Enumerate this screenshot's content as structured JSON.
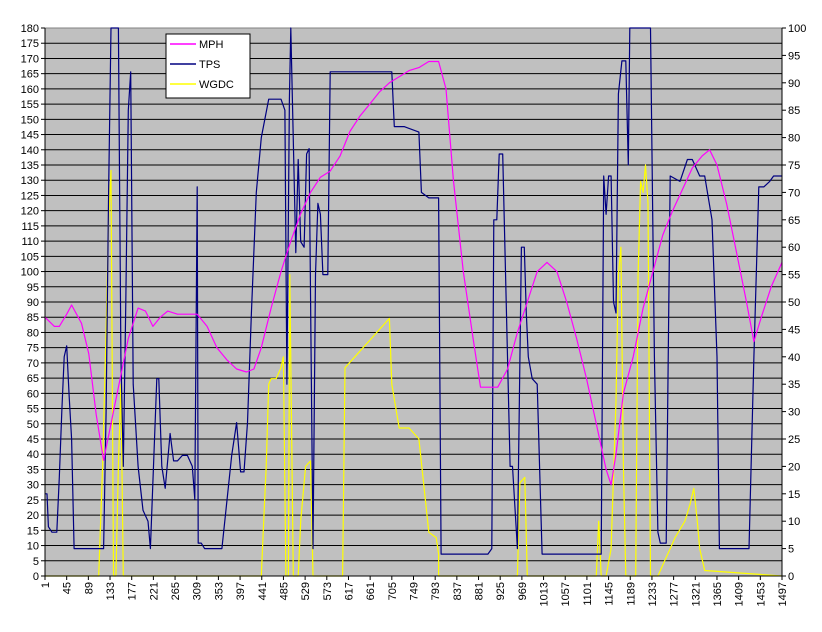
{
  "chart_data": {
    "type": "line",
    "title": "",
    "xlabel": "",
    "ylabel": "",
    "y2label": "",
    "xlim": [
      1,
      1497
    ],
    "ylim": [
      0,
      180
    ],
    "y2lim": [
      0,
      100
    ],
    "grid": "horizontal",
    "plot_background": "#c0c0c0",
    "legend_position": "top-left",
    "x_ticks": [
      "1",
      "45",
      "89",
      "133",
      "177",
      "221",
      "265",
      "309",
      "353",
      "397",
      "441",
      "485",
      "529",
      "573",
      "617",
      "661",
      "705",
      "749",
      "793",
      "837",
      "881",
      "925",
      "969",
      "1013",
      "1057",
      "1101",
      "1145",
      "1189",
      "1233",
      "1277",
      "1321",
      "1365",
      "1409",
      "1453",
      "1497"
    ],
    "y_ticks": [
      "0",
      "5",
      "10",
      "15",
      "20",
      "25",
      "30",
      "35",
      "40",
      "45",
      "50",
      "55",
      "60",
      "65",
      "70",
      "75",
      "80",
      "85",
      "90",
      "95",
      "100",
      "105",
      "110",
      "115",
      "120",
      "125",
      "130",
      "135",
      "140",
      "145",
      "150",
      "155",
      "160",
      "165",
      "170",
      "175",
      "180"
    ],
    "y2_ticks": [
      "0",
      "5",
      "10",
      "15",
      "20",
      "25",
      "30",
      "35",
      "40",
      "45",
      "50",
      "55",
      "60",
      "65",
      "70",
      "75",
      "80",
      "85",
      "90",
      "95",
      "100"
    ],
    "series": [
      {
        "name": "MPH",
        "axis": "left",
        "color": "#ff00ff",
        "points": [
          [
            1,
            85
          ],
          [
            20,
            82
          ],
          [
            30,
            82
          ],
          [
            45,
            86
          ],
          [
            55,
            89
          ],
          [
            75,
            83
          ],
          [
            90,
            73
          ],
          [
            105,
            53
          ],
          [
            120,
            38
          ],
          [
            135,
            50
          ],
          [
            150,
            62
          ],
          [
            170,
            78
          ],
          [
            190,
            88
          ],
          [
            205,
            87
          ],
          [
            220,
            82
          ],
          [
            235,
            85
          ],
          [
            250,
            87
          ],
          [
            270,
            86
          ],
          [
            290,
            86
          ],
          [
            310,
            86
          ],
          [
            330,
            82
          ],
          [
            350,
            75
          ],
          [
            370,
            71
          ],
          [
            390,
            68
          ],
          [
            410,
            67
          ],
          [
            425,
            68
          ],
          [
            440,
            75
          ],
          [
            460,
            88
          ],
          [
            480,
            100
          ],
          [
            500,
            110
          ],
          [
            520,
            119
          ],
          [
            540,
            126
          ],
          [
            560,
            131
          ],
          [
            580,
            133
          ],
          [
            600,
            138
          ],
          [
            620,
            146
          ],
          [
            640,
            151
          ],
          [
            660,
            155
          ],
          [
            680,
            159
          ],
          [
            700,
            162
          ],
          [
            720,
            164
          ],
          [
            740,
            166
          ],
          [
            760,
            167
          ],
          [
            780,
            169
          ],
          [
            800,
            169
          ],
          [
            815,
            160
          ],
          [
            830,
            130
          ],
          [
            850,
            100
          ],
          [
            870,
            78
          ],
          [
            885,
            62
          ],
          [
            905,
            62
          ],
          [
            920,
            62
          ],
          [
            940,
            68
          ],
          [
            960,
            80
          ],
          [
            980,
            90
          ],
          [
            1000,
            100
          ],
          [
            1020,
            103
          ],
          [
            1040,
            100
          ],
          [
            1060,
            90
          ],
          [
            1080,
            78
          ],
          [
            1100,
            65
          ],
          [
            1120,
            50
          ],
          [
            1140,
            35
          ],
          [
            1150,
            30
          ],
          [
            1160,
            40
          ],
          [
            1175,
            60
          ],
          [
            1195,
            72
          ],
          [
            1215,
            88
          ],
          [
            1235,
            100
          ],
          [
            1255,
            112
          ],
          [
            1275,
            120
          ],
          [
            1295,
            127
          ],
          [
            1315,
            134
          ],
          [
            1335,
            138
          ],
          [
            1350,
            140
          ],
          [
            1365,
            135
          ],
          [
            1385,
            122
          ],
          [
            1405,
            106
          ],
          [
            1425,
            90
          ],
          [
            1440,
            77
          ],
          [
            1455,
            85
          ],
          [
            1475,
            95
          ],
          [
            1497,
            103
          ]
        ]
      },
      {
        "name": "TPS",
        "axis": "right",
        "color": "#000080",
        "points": [
          [
            1,
            15
          ],
          [
            5,
            15
          ],
          [
            8,
            9
          ],
          [
            15,
            8
          ],
          [
            25,
            8
          ],
          [
            30,
            18
          ],
          [
            35,
            30
          ],
          [
            40,
            40
          ],
          [
            45,
            42
          ],
          [
            50,
            33
          ],
          [
            55,
            25
          ],
          [
            60,
            5
          ],
          [
            70,
            5
          ],
          [
            120,
            5
          ],
          [
            125,
            30
          ],
          [
            130,
            70
          ],
          [
            135,
            100
          ],
          [
            150,
            100
          ],
          [
            155,
            40
          ],
          [
            160,
            20
          ],
          [
            165,
            50
          ],
          [
            170,
            85
          ],
          [
            175,
            92
          ],
          [
            180,
            35
          ],
          [
            190,
            20
          ],
          [
            200,
            12
          ],
          [
            210,
            10
          ],
          [
            215,
            5
          ],
          [
            222,
            22
          ],
          [
            228,
            36
          ],
          [
            232,
            36
          ],
          [
            238,
            20
          ],
          [
            245,
            16
          ],
          [
            255,
            26
          ],
          [
            262,
            21
          ],
          [
            270,
            21
          ],
          [
            280,
            22
          ],
          [
            290,
            22
          ],
          [
            300,
            20
          ],
          [
            305,
            14
          ],
          [
            310,
            71
          ],
          [
            312,
            6
          ],
          [
            318,
            6
          ],
          [
            325,
            5
          ],
          [
            360,
            5
          ],
          [
            380,
            22
          ],
          [
            390,
            28
          ],
          [
            398,
            19
          ],
          [
            405,
            19
          ],
          [
            412,
            28
          ],
          [
            420,
            48
          ],
          [
            430,
            70
          ],
          [
            440,
            80
          ],
          [
            455,
            87
          ],
          [
            480,
            87
          ],
          [
            488,
            85
          ],
          [
            492,
            35
          ],
          [
            497,
            87
          ],
          [
            500,
            100
          ],
          [
            510,
            59
          ],
          [
            515,
            76
          ],
          [
            520,
            61
          ],
          [
            527,
            60
          ],
          [
            532,
            77
          ],
          [
            537,
            78
          ],
          [
            545,
            5
          ],
          [
            550,
            55
          ],
          [
            555,
            68
          ],
          [
            560,
            66
          ],
          [
            565,
            55
          ],
          [
            575,
            55
          ],
          [
            580,
            92
          ],
          [
            620,
            92
          ],
          [
            650,
            92
          ],
          [
            705,
            92
          ],
          [
            710,
            82
          ],
          [
            730,
            82
          ],
          [
            760,
            81
          ],
          [
            765,
            70
          ],
          [
            780,
            69
          ],
          [
            800,
            69
          ],
          [
            805,
            4
          ],
          [
            815,
            4
          ],
          [
            900,
            4
          ],
          [
            908,
            5
          ],
          [
            912,
            65
          ],
          [
            918,
            65
          ],
          [
            923,
            77
          ],
          [
            930,
            77
          ],
          [
            945,
            20
          ],
          [
            950,
            20
          ],
          [
            960,
            5
          ],
          [
            968,
            60
          ],
          [
            974,
            60
          ],
          [
            978,
            48
          ],
          [
            982,
            40
          ],
          [
            990,
            36
          ],
          [
            1000,
            35
          ],
          [
            1010,
            4
          ],
          [
            1020,
            4
          ],
          [
            1100,
            4
          ],
          [
            1130,
            4
          ],
          [
            1135,
            73
          ],
          [
            1140,
            66
          ],
          [
            1145,
            73
          ],
          [
            1150,
            73
          ],
          [
            1155,
            50
          ],
          [
            1160,
            48
          ],
          [
            1165,
            88
          ],
          [
            1172,
            94
          ],
          [
            1180,
            94
          ],
          [
            1185,
            75
          ],
          [
            1188,
            100
          ],
          [
            1230,
            100
          ],
          [
            1238,
            40
          ],
          [
            1245,
            8
          ],
          [
            1250,
            6
          ],
          [
            1262,
            6
          ],
          [
            1270,
            73
          ],
          [
            1290,
            72
          ],
          [
            1305,
            76
          ],
          [
            1315,
            76
          ],
          [
            1330,
            73
          ],
          [
            1340,
            73
          ],
          [
            1355,
            65
          ],
          [
            1365,
            40
          ],
          [
            1370,
            5
          ],
          [
            1400,
            5
          ],
          [
            1430,
            5
          ],
          [
            1440,
            40
          ],
          [
            1450,
            71
          ],
          [
            1460,
            71
          ],
          [
            1472,
            72
          ],
          [
            1480,
            73
          ],
          [
            1497,
            73
          ]
        ]
      },
      {
        "name": "WGDC",
        "axis": "right",
        "color": "#ffff00",
        "points": [
          [
            1,
            0
          ],
          [
            100,
            0
          ],
          [
            110,
            0
          ],
          [
            118,
            20
          ],
          [
            125,
            45
          ],
          [
            130,
            65
          ],
          [
            135,
            74
          ],
          [
            140,
            0
          ],
          [
            145,
            0
          ],
          [
            150,
            20
          ],
          [
            155,
            35
          ],
          [
            160,
            0
          ],
          [
            440,
            0
          ],
          [
            445,
            10
          ],
          [
            450,
            20
          ],
          [
            455,
            35
          ],
          [
            460,
            36
          ],
          [
            470,
            36
          ],
          [
            480,
            38
          ],
          [
            485,
            40
          ],
          [
            490,
            0
          ],
          [
            495,
            0
          ],
          [
            498,
            55
          ],
          [
            505,
            0
          ],
          [
            515,
            0
          ],
          [
            520,
            10
          ],
          [
            530,
            20
          ],
          [
            540,
            21
          ],
          [
            545,
            0
          ],
          [
            605,
            0
          ],
          [
            610,
            38
          ],
          [
            620,
            39
          ],
          [
            640,
            41
          ],
          [
            660,
            43
          ],
          [
            680,
            45
          ],
          [
            700,
            47
          ],
          [
            705,
            35
          ],
          [
            720,
            27
          ],
          [
            740,
            27
          ],
          [
            760,
            25
          ],
          [
            780,
            8
          ],
          [
            795,
            7
          ],
          [
            800,
            4
          ],
          [
            800,
            0
          ],
          [
            960,
            0
          ],
          [
            965,
            17
          ],
          [
            975,
            18
          ],
          [
            980,
            0
          ],
          [
            1120,
            0
          ],
          [
            1125,
            10
          ],
          [
            1130,
            0
          ],
          [
            1140,
            0
          ],
          [
            1150,
            5
          ],
          [
            1160,
            32
          ],
          [
            1165,
            55
          ],
          [
            1170,
            60
          ],
          [
            1175,
            20
          ],
          [
            1180,
            0
          ],
          [
            1200,
            0
          ],
          [
            1205,
            55
          ],
          [
            1210,
            72
          ],
          [
            1215,
            70
          ],
          [
            1220,
            75
          ],
          [
            1225,
            68
          ],
          [
            1230,
            0
          ],
          [
            1245,
            0
          ],
          [
            1260,
            3
          ],
          [
            1270,
            5
          ],
          [
            1280,
            7
          ],
          [
            1300,
            10
          ],
          [
            1310,
            13
          ],
          [
            1318,
            16
          ],
          [
            1325,
            10
          ],
          [
            1330,
            5
          ],
          [
            1340,
            1
          ],
          [
            1497,
            0
          ]
        ]
      }
    ]
  }
}
